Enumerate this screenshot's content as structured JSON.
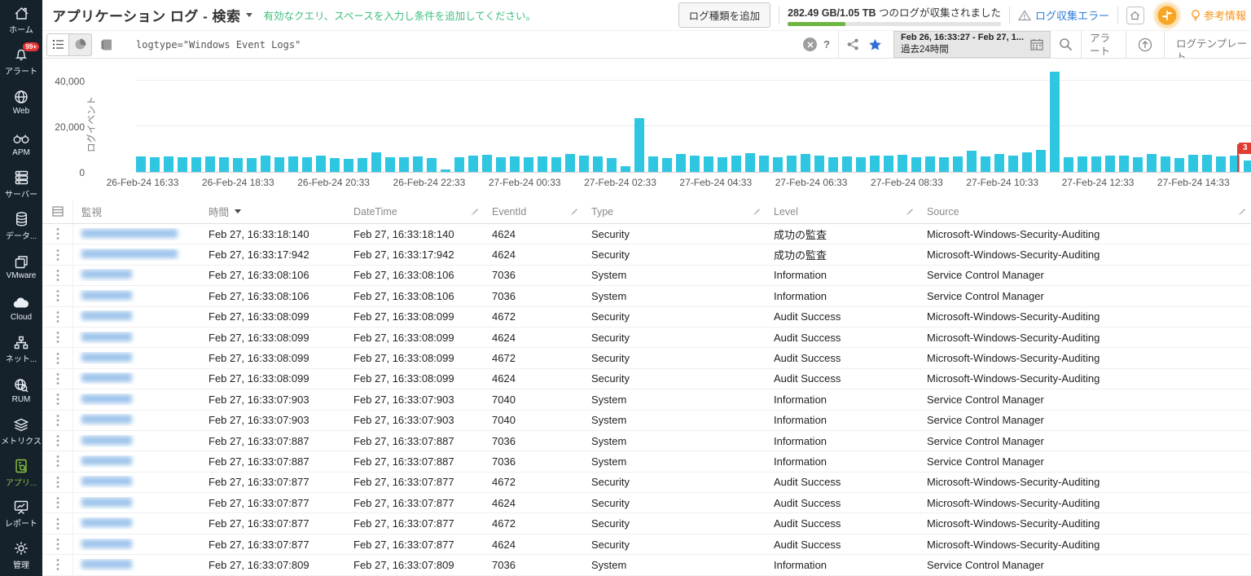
{
  "sidebar": {
    "items": [
      {
        "id": "home",
        "icon": "home",
        "label": "ホーム"
      },
      {
        "id": "alerts",
        "icon": "bell",
        "label": "アラート",
        "badge": "99+"
      },
      {
        "id": "web",
        "icon": "globe",
        "label": "Web"
      },
      {
        "id": "apm",
        "icon": "binoculars",
        "label": "APM"
      },
      {
        "id": "server",
        "icon": "server",
        "label": "サーバー"
      },
      {
        "id": "data",
        "icon": "database",
        "label": "データ..."
      },
      {
        "id": "vmware",
        "icon": "vmware",
        "label": "VMware"
      },
      {
        "id": "cloud",
        "icon": "cloud",
        "label": "Cloud"
      },
      {
        "id": "network",
        "icon": "network",
        "label": "ネット..."
      },
      {
        "id": "rum",
        "icon": "rum",
        "label": "RUM"
      },
      {
        "id": "metrics",
        "icon": "layers",
        "label": "メトリクス"
      },
      {
        "id": "applogs",
        "icon": "applogs",
        "label": "アプリ...",
        "active": true
      },
      {
        "id": "report",
        "icon": "report",
        "label": "レポート"
      },
      {
        "id": "admin",
        "icon": "gear",
        "label": "管理"
      }
    ]
  },
  "header": {
    "title": "アプリケーション ログ - 検索",
    "hint": "有効なクエリ、スペースを入力し条件を追加してください。",
    "add_log_type_button": "ログ種類を追加",
    "storage_bold": "282.49 GB/1.05 TB",
    "storage_rest": " つのログが収集されました",
    "storage_percent": 27,
    "log_error_link": "ログ収集エラー",
    "reference_link": "参考情報"
  },
  "toolbar": {
    "query": "logtype=\"Windows Event Logs\"",
    "help_label": "?",
    "date_range": "Feb 26, 16:33:27 - Feb 27, 1...",
    "date_preset": "過去24時間",
    "alert_label": "アラート",
    "template_label": "ログテンプレート"
  },
  "chart_data": {
    "type": "bar",
    "title": "",
    "xlabel": "",
    "ylabel": "ログイベント",
    "yticks": [
      0,
      20000,
      40000
    ],
    "ylim": [
      0,
      45000
    ],
    "grid": true,
    "bar_color": "#2fc6e2",
    "x_tick_labels": [
      "26-Feb-24 16:33",
      "26-Feb-24 18:33",
      "26-Feb-24 20:33",
      "26-Feb-24 22:33",
      "27-Feb-24 00:33",
      "27-Feb-24 02:33",
      "27-Feb-24 04:33",
      "27-Feb-24 06:33",
      "27-Feb-24 08:33",
      "27-Feb-24 10:33",
      "27-Feb-24 12:33",
      "27-Feb-24 14:33"
    ],
    "values": [
      6900,
      6300,
      6800,
      6300,
      6500,
      6900,
      6600,
      6200,
      5900,
      7200,
      6500,
      6800,
      6600,
      7100,
      5900,
      5700,
      6100,
      8700,
      6400,
      6400,
      6700,
      6200,
      900,
      6500,
      7000,
      7400,
      6400,
      6700,
      6500,
      6900,
      6300,
      7900,
      7000,
      6700,
      6100,
      2400,
      23500,
      6900,
      6200,
      7700,
      7000,
      6700,
      6400,
      7100,
      8100,
      7000,
      6600,
      7300,
      7700,
      7000,
      6400,
      6800,
      6600,
      7200,
      7300,
      7500,
      6500,
      6700,
      6400,
      6700,
      9400,
      6800,
      8000,
      7100,
      8700,
      9600,
      44000,
      6500,
      6700,
      6900,
      7300,
      7200,
      6300,
      7900,
      6900,
      6200,
      7600,
      7500,
      6900,
      7100,
      4900,
      6400
    ],
    "annotation": {
      "type": "flag",
      "label": "3",
      "bar_index": 79
    }
  },
  "table": {
    "columns": [
      {
        "key": "monitor",
        "label": "監視"
      },
      {
        "key": "time",
        "label": "時間",
        "sorted": "desc"
      },
      {
        "key": "datetime",
        "label": "DateTime",
        "editable": true
      },
      {
        "key": "event_id",
        "label": "EventId",
        "editable": true
      },
      {
        "key": "type",
        "label": "Type",
        "editable": true
      },
      {
        "key": "level",
        "label": "Level",
        "editable": true
      },
      {
        "key": "source",
        "label": "Source",
        "editable": true
      }
    ],
    "rows": [
      {
        "monitor_blur": "long",
        "time": "Feb 27, 16:33:18:140",
        "datetime": "Feb 27, 16:33:18:140",
        "event_id": "4624",
        "type": "Security",
        "level": "成功の監査",
        "source": "Microsoft-Windows-Security-Auditing"
      },
      {
        "monitor_blur": "long",
        "time": "Feb 27, 16:33:17:942",
        "datetime": "Feb 27, 16:33:17:942",
        "event_id": "4624",
        "type": "Security",
        "level": "成功の監査",
        "source": "Microsoft-Windows-Security-Auditing"
      },
      {
        "monitor_blur": "short",
        "time": "Feb 27, 16:33:08:106",
        "datetime": "Feb 27, 16:33:08:106",
        "event_id": "7036",
        "type": "System",
        "level": "Information",
        "source": "Service Control Manager"
      },
      {
        "monitor_blur": "short",
        "time": "Feb 27, 16:33:08:106",
        "datetime": "Feb 27, 16:33:08:106",
        "event_id": "7036",
        "type": "System",
        "level": "Information",
        "source": "Service Control Manager"
      },
      {
        "monitor_blur": "short",
        "time": "Feb 27, 16:33:08:099",
        "datetime": "Feb 27, 16:33:08:099",
        "event_id": "4672",
        "type": "Security",
        "level": "Audit Success",
        "source": "Microsoft-Windows-Security-Auditing"
      },
      {
        "monitor_blur": "short",
        "time": "Feb 27, 16:33:08:099",
        "datetime": "Feb 27, 16:33:08:099",
        "event_id": "4624",
        "type": "Security",
        "level": "Audit Success",
        "source": "Microsoft-Windows-Security-Auditing"
      },
      {
        "monitor_blur": "short",
        "time": "Feb 27, 16:33:08:099",
        "datetime": "Feb 27, 16:33:08:099",
        "event_id": "4672",
        "type": "Security",
        "level": "Audit Success",
        "source": "Microsoft-Windows-Security-Auditing"
      },
      {
        "monitor_blur": "short",
        "time": "Feb 27, 16:33:08:099",
        "datetime": "Feb 27, 16:33:08:099",
        "event_id": "4624",
        "type": "Security",
        "level": "Audit Success",
        "source": "Microsoft-Windows-Security-Auditing"
      },
      {
        "monitor_blur": "short",
        "time": "Feb 27, 16:33:07:903",
        "datetime": "Feb 27, 16:33:07:903",
        "event_id": "7040",
        "type": "System",
        "level": "Information",
        "source": "Service Control Manager"
      },
      {
        "monitor_blur": "short",
        "time": "Feb 27, 16:33:07:903",
        "datetime": "Feb 27, 16:33:07:903",
        "event_id": "7040",
        "type": "System",
        "level": "Information",
        "source": "Service Control Manager"
      },
      {
        "monitor_blur": "short",
        "time": "Feb 27, 16:33:07:887",
        "datetime": "Feb 27, 16:33:07:887",
        "event_id": "7036",
        "type": "System",
        "level": "Information",
        "source": "Service Control Manager"
      },
      {
        "monitor_blur": "short",
        "time": "Feb 27, 16:33:07:887",
        "datetime": "Feb 27, 16:33:07:887",
        "event_id": "7036",
        "type": "System",
        "level": "Information",
        "source": "Service Control Manager"
      },
      {
        "monitor_blur": "short",
        "time": "Feb 27, 16:33:07:877",
        "datetime": "Feb 27, 16:33:07:877",
        "event_id": "4672",
        "type": "Security",
        "level": "Audit Success",
        "source": "Microsoft-Windows-Security-Auditing"
      },
      {
        "monitor_blur": "short",
        "time": "Feb 27, 16:33:07:877",
        "datetime": "Feb 27, 16:33:07:877",
        "event_id": "4624",
        "type": "Security",
        "level": "Audit Success",
        "source": "Microsoft-Windows-Security-Auditing"
      },
      {
        "monitor_blur": "short",
        "time": "Feb 27, 16:33:07:877",
        "datetime": "Feb 27, 16:33:07:877",
        "event_id": "4672",
        "type": "Security",
        "level": "Audit Success",
        "source": "Microsoft-Windows-Security-Auditing"
      },
      {
        "monitor_blur": "short",
        "time": "Feb 27, 16:33:07:877",
        "datetime": "Feb 27, 16:33:07:877",
        "event_id": "4624",
        "type": "Security",
        "level": "Audit Success",
        "source": "Microsoft-Windows-Security-Auditing"
      },
      {
        "monitor_blur": "short",
        "time": "Feb 27, 16:33:07:809",
        "datetime": "Feb 27, 16:33:07:809",
        "event_id": "7036",
        "type": "System",
        "level": "Information",
        "source": "Service Control Manager"
      }
    ]
  },
  "colors": {
    "accent_green": "#8dc63f",
    "bar_cyan": "#2fc6e2",
    "link_blue": "#2f7ed8",
    "ref_orange": "#f7941e",
    "flag_red": "#e03c31"
  }
}
